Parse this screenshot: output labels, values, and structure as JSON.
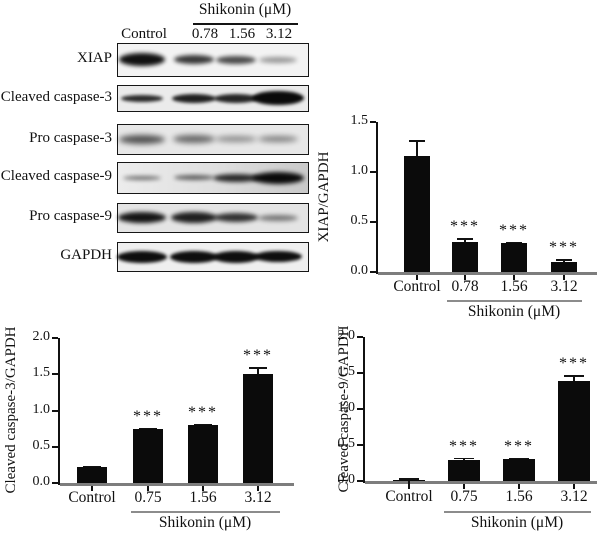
{
  "colors": {
    "axis": "#111111",
    "baseline": "#7d7d7d",
    "group_line": "#8c8c8c",
    "bar": "#0b0b0b",
    "background": "#ffffff"
  },
  "blot": {
    "group_label": "Shikonin (μM)",
    "lane_labels": [
      "Control",
      "0.78",
      "1.56",
      "3.12"
    ],
    "rows": [
      {
        "label": "XIAP",
        "bg": "#f3f3f3",
        "bands": [
          [
            46,
            13,
            0.97,
            2
          ],
          [
            40,
            9,
            0.8,
            2
          ],
          [
            40,
            8,
            0.72,
            2
          ],
          [
            38,
            6,
            0.4,
            2.5
          ]
        ]
      },
      {
        "label": "Cleaved caspase-3",
        "bg": "#ebebeb",
        "bands": [
          [
            42,
            7,
            0.85,
            1.5
          ],
          [
            44,
            9,
            0.9,
            1.5
          ],
          [
            44,
            9,
            0.88,
            1.5
          ],
          [
            52,
            14,
            1,
            1.5
          ]
        ]
      },
      {
        "label": "Pro caspase-3",
        "bg": "#e7e7e7",
        "bands": [
          [
            46,
            9,
            0.68,
            3
          ],
          [
            42,
            8,
            0.58,
            3
          ],
          [
            42,
            6,
            0.42,
            3
          ],
          [
            40,
            6,
            0.48,
            3
          ]
        ]
      },
      {
        "label": "Cleaved caspase-9",
        "bg": "linear-gradient(90deg,#ececec,#dedede 55%,#c9c9c9)",
        "bands": [
          [
            38,
            4,
            0.55,
            2
          ],
          [
            40,
            5,
            0.62,
            2
          ],
          [
            46,
            8,
            0.85,
            2
          ],
          [
            52,
            12,
            1,
            2
          ]
        ]
      },
      {
        "label": "Pro caspase-9",
        "bg": "#e4e4e4",
        "bands": [
          [
            48,
            11,
            0.95,
            2
          ],
          [
            46,
            11,
            0.9,
            2
          ],
          [
            44,
            9,
            0.82,
            2
          ],
          [
            40,
            6,
            0.52,
            2.5
          ]
        ]
      },
      {
        "label": "GAPDH",
        "bg": "#efefef",
        "bands": [
          [
            50,
            12,
            0.98,
            1.5
          ],
          [
            48,
            12,
            0.98,
            1.5
          ],
          [
            46,
            12,
            0.98,
            1.5
          ],
          [
            48,
            11,
            0.98,
            1.5
          ]
        ]
      }
    ]
  },
  "chart_data": [
    {
      "id": "xiap",
      "type": "bar",
      "ylabel": "XIAP/GAPDH",
      "xlabel": "",
      "categories": [
        "Control",
        "0.78",
        "1.56",
        "3.12"
      ],
      "values": [
        1.16,
        0.3,
        0.29,
        0.1
      ],
      "errors": [
        0.16,
        0.04,
        0.01,
        0.03
      ],
      "significance": [
        "",
        "***",
        "***",
        "***"
      ],
      "ytick_labels": [
        "0.0",
        "0.5",
        "1.0",
        "1.5"
      ],
      "ytick_values": [
        0,
        0.5,
        1,
        1.5
      ],
      "ylim": [
        0,
        1.5
      ],
      "group_label": "Shikonin (μM)",
      "grouped_categories": [
        "0.78",
        "1.56",
        "3.12"
      ],
      "legend": "none",
      "grid": "off",
      "bar_color": "#0b0b0b"
    },
    {
      "id": "casp3",
      "type": "bar",
      "ylabel": "Cleaved caspase-3/GAPDH",
      "xlabel": "",
      "categories": [
        "Control",
        "0.75",
        "1.56",
        "3.12"
      ],
      "values": [
        0.22,
        0.74,
        0.8,
        1.51
      ],
      "errors": [
        0.02,
        0.02,
        0.02,
        0.09
      ],
      "significance": [
        "",
        "***",
        "***",
        "***"
      ],
      "ytick_labels": [
        "0.0",
        "0.5",
        "1.0",
        "1.5",
        "2.0"
      ],
      "ytick_values": [
        0,
        0.5,
        1,
        1.5,
        2
      ],
      "ylim": [
        0,
        2
      ],
      "group_label": "Shikonin (μM)",
      "grouped_categories": [
        "0.75",
        "1.56",
        "3.12"
      ],
      "legend": "none",
      "grid": "off",
      "bar_color": "#0b0b0b"
    },
    {
      "id": "casp9",
      "type": "bar",
      "ylabel": "Cleaved caspase-9/GAPDH",
      "xlabel": "",
      "categories": [
        "Control",
        "0.75",
        "1.56",
        "3.12"
      ],
      "values": [
        0.02,
        0.29,
        0.3,
        1.39
      ],
      "errors": [
        0.015,
        0.03,
        0.025,
        0.08
      ],
      "significance": [
        "",
        "***",
        "***",
        "***"
      ],
      "ytick_labels": [
        "0.0",
        "0.5",
        "1.0",
        "1.5",
        "2.0"
      ],
      "ytick_values": [
        0,
        0.5,
        1,
        1.5,
        2
      ],
      "ylim": [
        0,
        2
      ],
      "group_label": "Shikonin (μM)",
      "grouped_categories": [
        "0.75",
        "1.56",
        "3.12"
      ],
      "legend": "none",
      "grid": "off",
      "bar_color": "#0b0b0b"
    }
  ]
}
